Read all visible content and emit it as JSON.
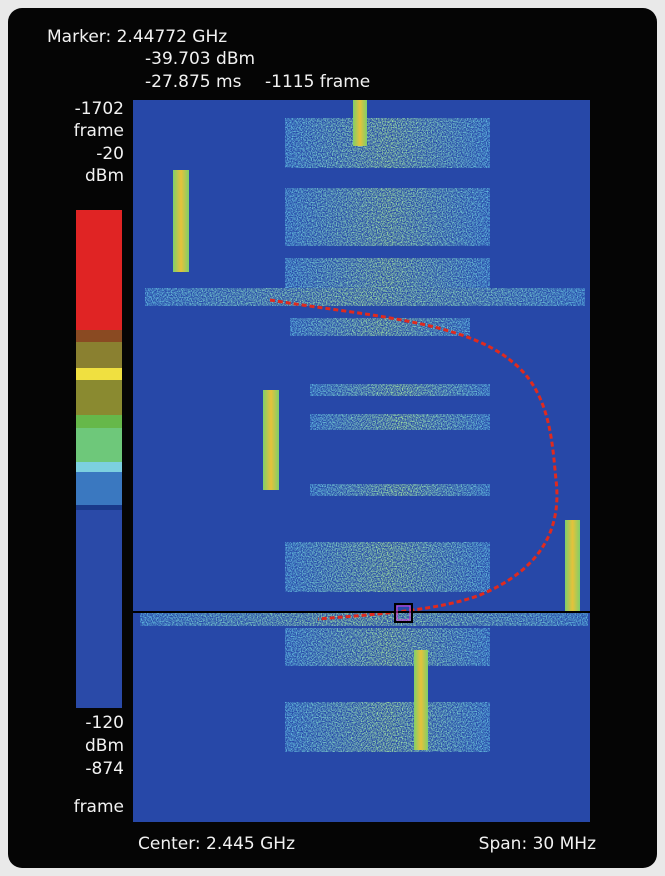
{
  "marker": {
    "frequency": "Marker: 2.44772 GHz",
    "power": "-39.703 dBm",
    "time": "-27.875 ms",
    "frame": "-1115 frame"
  },
  "colorbar": {
    "top_frame": "-1702",
    "top_frame_unit": "frame",
    "top_level": "-20",
    "top_level_unit": "dBm",
    "bottom_level": "-120",
    "bottom_level_unit": "dBm",
    "bottom_frame": "-874",
    "bottom_frame_unit": "frame"
  },
  "footer": {
    "center": "Center: 2.445 GHz",
    "span": "Span: 30 MHz"
  }
}
